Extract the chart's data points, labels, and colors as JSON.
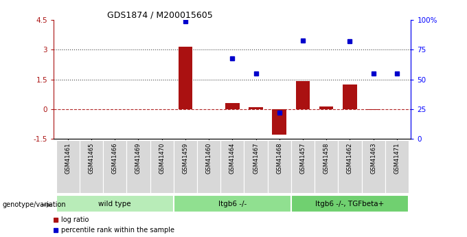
{
  "title": "GDS1874 / M200015605",
  "samples": [
    "GSM41461",
    "GSM41465",
    "GSM41466",
    "GSM41469",
    "GSM41470",
    "GSM41459",
    "GSM41460",
    "GSM41464",
    "GSM41467",
    "GSM41468",
    "GSM41457",
    "GSM41458",
    "GSM41462",
    "GSM41463",
    "GSM41471"
  ],
  "log_ratio": [
    0.0,
    0.0,
    0.0,
    0.0,
    0.0,
    3.15,
    0.0,
    0.3,
    0.1,
    -1.3,
    1.4,
    0.12,
    1.25,
    -0.05,
    0.0
  ],
  "percentile_rank": [
    null,
    null,
    null,
    null,
    null,
    99,
    null,
    68,
    55,
    22,
    83,
    null,
    82,
    55,
    55
  ],
  "groups": [
    {
      "label": "wild type",
      "start": 0,
      "end": 5,
      "color": "#b8ecb8"
    },
    {
      "label": "Itgb6 -/-",
      "start": 5,
      "end": 10,
      "color": "#90e090"
    },
    {
      "label": "Itgb6 -/-, TGFbeta+",
      "start": 10,
      "end": 15,
      "color": "#70d070"
    }
  ],
  "ylim_left": [
    -1.5,
    4.5
  ],
  "ylim_right": [
    0,
    100
  ],
  "yticks_left": [
    -1.5,
    0.0,
    1.5,
    3.0,
    4.5
  ],
  "yticks_right": [
    0,
    25,
    50,
    75,
    100
  ],
  "hlines": [
    1.5,
    3.0
  ],
  "bar_color": "#aa1111",
  "dot_color": "#0000cc",
  "sample_bg": "#d8d8d8",
  "legend_label_ratio": "log ratio",
  "legend_label_pct": "percentile rank within the sample"
}
